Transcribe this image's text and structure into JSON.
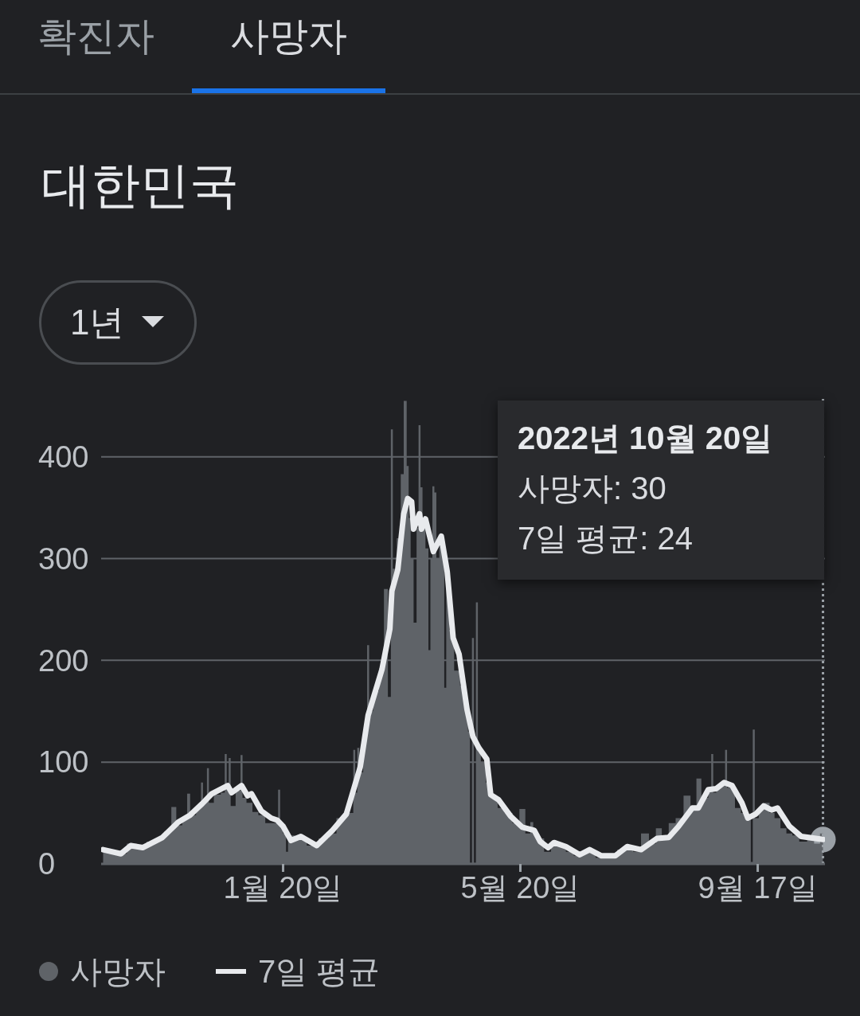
{
  "chart_data": {
    "type": "area",
    "title": "대한민국",
    "annotations": [
      "확진자",
      "사망자",
      "1년",
      "2022년 10월 20일",
      "사망자: 30",
      "7일 평균: 24"
    ],
    "xlim": [
      "2021-10-20",
      "2022-10-21"
    ],
    "xticks": [
      {
        "value": "2022-01-20",
        "label": "1월 20일"
      },
      {
        "value": "2022-05-20",
        "label": "5월 20일"
      },
      {
        "value": "2022-09-17",
        "label": "9월 17일"
      }
    ],
    "ylim": [
      0,
      460
    ],
    "yticks": [
      0,
      100,
      200,
      300,
      400
    ],
    "grid": "y",
    "legend": "bottom left",
    "marker": "none",
    "line_style": "solid",
    "ref_lines": [
      {
        "axis": "x",
        "value": "2022-10-20",
        "color": "#9aa0a6",
        "line_style": "dotted"
      }
    ],
    "series": [
      {
        "name": "사망자",
        "color": "#5f6368",
        "x": [
          "2021-10-21",
          "2021-10-26",
          "2021-10-31",
          "2021-11-04",
          "2021-11-10",
          "2021-11-14",
          "2021-11-19",
          "2021-11-23",
          "2021-11-26",
          "2021-11-28",
          "2021-12-02",
          "2021-12-03",
          "2021-12-05",
          "2021-12-09",
          "2021-12-10",
          "2021-12-11",
          "2021-12-12",
          "2021-12-13",
          "2021-12-14",
          "2021-12-18",
          "2021-12-21",
          "2021-12-22",
          "2021-12-23",
          "2021-12-24",
          "2021-12-25",
          "2021-12-29",
          "2021-12-30",
          "2021-12-31",
          "2022-01-03",
          "2022-01-06",
          "2022-01-09",
          "2022-01-13",
          "2022-01-17",
          "2022-01-18",
          "2022-01-19",
          "2022-01-21",
          "2022-01-22",
          "2022-01-23",
          "2022-01-29",
          "2022-02-04",
          "2022-02-10",
          "2022-02-14",
          "2022-02-18",
          "2022-02-21",
          "2022-02-24",
          "2022-02-25",
          "2022-02-26",
          "2022-02-27",
          "2022-02-28",
          "2022-03-03",
          "2022-03-04",
          "2022-03-05",
          "2022-03-08",
          "2022-03-11",
          "2022-03-13",
          "2022-03-15",
          "2022-03-16",
          "2022-03-17",
          "2022-03-20",
          "2022-03-21",
          "2022-03-23",
          "2022-03-24",
          "2022-03-25",
          "2022-03-26",
          "2022-03-28",
          "2022-03-29",
          "2022-03-30",
          "2022-03-31",
          "2022-04-01",
          "2022-04-03",
          "2022-04-04",
          "2022-04-05",
          "2022-04-06",
          "2022-04-07",
          "2022-04-08",
          "2022-04-10",
          "2022-04-11",
          "2022-04-12",
          "2022-04-13",
          "2022-04-15",
          "2022-04-18",
          "2022-04-21",
          "2022-04-23",
          "2022-04-24",
          "2022-04-25",
          "2022-04-26",
          "2022-04-27",
          "2022-04-28",
          "2022-04-29",
          "2022-05-01",
          "2022-05-04",
          "2022-05-07",
          "2022-05-10",
          "2022-05-14",
          "2022-05-18",
          "2022-05-21",
          "2022-05-24",
          "2022-05-26",
          "2022-05-27",
          "2022-05-30",
          "2022-06-03",
          "2022-06-06",
          "2022-06-10",
          "2022-06-14",
          "2022-06-18",
          "2022-06-24",
          "2022-06-30",
          "2022-07-06",
          "2022-07-10",
          "2022-07-14",
          "2022-07-18",
          "2022-07-22",
          "2022-07-26",
          "2022-07-29",
          "2022-08-01",
          "2022-08-05",
          "2022-08-08",
          "2022-08-13",
          "2022-08-15",
          "2022-08-19",
          "2022-08-20",
          "2022-08-22",
          "2022-08-24",
          "2022-08-25",
          "2022-08-26",
          "2022-08-28",
          "2022-08-31",
          "2022-09-01",
          "2022-09-02",
          "2022-09-04",
          "2022-09-07",
          "2022-09-10",
          "2022-09-13",
          "2022-09-14",
          "2022-09-15",
          "2022-09-16",
          "2022-09-19",
          "2022-09-22",
          "2022-09-24",
          "2022-09-27",
          "2022-09-30",
          "2022-10-03",
          "2022-10-06",
          "2022-10-10",
          "2022-10-14",
          "2022-10-17",
          "2022-10-20"
        ],
        "values": [
          14,
          12,
          10,
          20,
          15,
          22,
          25,
          32,
          56,
          38,
          45,
          69,
          48,
          55,
          80,
          58,
          62,
          94,
          60,
          68,
          70,
          108,
          75,
          104,
          57,
          72,
          107,
          65,
          60,
          51,
          48,
          40,
          40,
          73,
          38,
          30,
          12,
          28,
          25,
          18,
          25,
          30,
          45,
          50,
          50,
          112,
          70,
          114,
          90,
          130,
          215,
          150,
          170,
          190,
          270,
          164,
          427,
          290,
          320,
          383,
          455,
          391,
          340,
          300,
          237,
          330,
          431,
          370,
          340,
          310,
          210,
          300,
          371,
          365,
          300,
          317,
          318,
          173,
          280,
          230,
          190,
          175,
          160,
          130,
          1,
          222,
          1,
          257,
          110,
          100,
          80,
          65,
          55,
          50,
          40,
          54,
          30,
          41,
          30,
          25,
          12,
          20,
          18,
          12,
          8,
          12,
          6,
          7,
          14,
          15,
          12,
          30,
          20,
          35,
          25,
          40,
          45,
          67,
          55,
          84,
          60,
          65,
          75,
          108,
          70,
          75,
          78,
          112,
          75,
          75,
          55,
          50,
          45,
          2,
          132,
          45,
          55,
          60,
          50,
          45,
          35,
          30,
          28,
          22,
          25,
          20,
          30
        ]
      },
      {
        "name": "7일 평균",
        "type": "line",
        "color": "#e8eaed",
        "x": [
          "2021-10-21",
          "2021-10-30",
          "2021-11-04",
          "2021-11-10",
          "2021-11-20",
          "2021-11-28",
          "2021-12-04",
          "2021-12-10",
          "2021-12-15",
          "2021-12-23",
          "2021-12-25",
          "2021-12-30",
          "2022-01-02",
          "2022-01-04",
          "2022-01-09",
          "2022-01-14",
          "2022-01-17",
          "2022-01-20",
          "2022-01-24",
          "2022-01-29",
          "2022-02-06",
          "2022-02-14",
          "2022-02-21",
          "2022-02-28",
          "2022-03-04",
          "2022-03-11",
          "2022-03-15",
          "2022-03-16",
          "2022-03-19",
          "2022-03-22",
          "2022-03-24",
          "2022-03-26",
          "2022-03-27",
          "2022-03-30",
          "2022-03-31",
          "2022-04-02",
          "2022-04-06",
          "2022-04-10",
          "2022-04-13",
          "2022-04-16",
          "2022-04-19",
          "2022-04-23",
          "2022-04-26",
          "2022-04-29",
          "2022-05-03",
          "2022-05-05",
          "2022-05-09",
          "2022-05-15",
          "2022-05-21",
          "2022-05-27",
          "2022-05-30",
          "2022-06-03",
          "2022-06-06",
          "2022-06-12",
          "2022-06-19",
          "2022-06-24",
          "2022-06-30",
          "2022-07-07",
          "2022-07-13",
          "2022-07-20",
          "2022-07-28",
          "2022-08-03",
          "2022-08-08",
          "2022-08-15",
          "2022-08-18",
          "2022-08-23",
          "2022-08-27",
          "2022-08-31",
          "2022-09-04",
          "2022-09-09",
          "2022-09-12",
          "2022-09-16",
          "2022-09-20",
          "2022-09-24",
          "2022-09-27",
          "2022-10-03",
          "2022-10-09",
          "2022-10-20"
        ],
        "values": [
          14,
          10,
          18,
          16,
          26,
          41,
          48,
          59,
          69,
          77,
          70,
          77,
          67,
          69,
          52,
          45,
          43,
          37,
          23,
          27,
          18,
          33,
          49,
          95,
          146,
          191,
          231,
          268,
          289,
          344,
          359,
          356,
          329,
          344,
          329,
          339,
          307,
          322,
          287,
          222,
          206,
          152,
          125,
          114,
          103,
          68,
          63,
          47,
          36,
          33,
          22,
          16,
          21,
          17,
          9,
          14,
          8,
          8,
          17,
          14,
          25,
          26,
          37,
          55,
          55,
          73,
          74,
          80,
          77,
          60,
          45,
          49,
          57,
          53,
          55,
          37,
          27,
          24
        ]
      }
    ]
  }
}
